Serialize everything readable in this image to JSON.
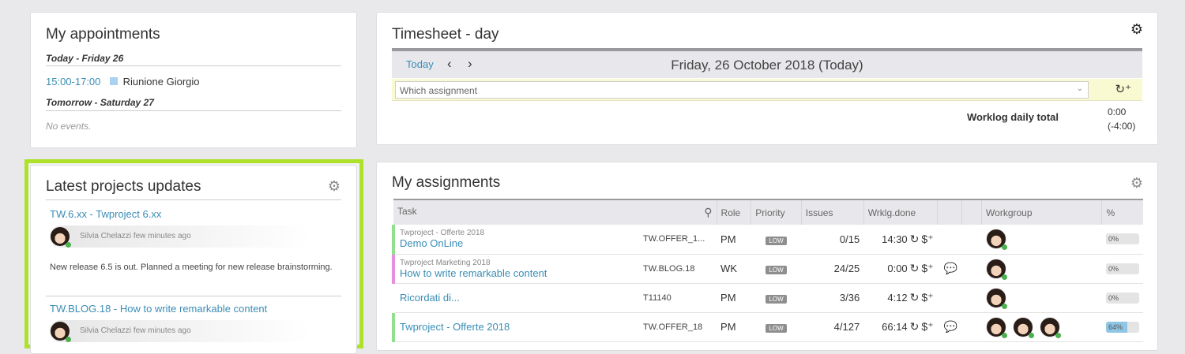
{
  "appointments": {
    "title": "My appointments",
    "today_label": "Today - Friday 26",
    "events": [
      {
        "time": "15:00-17:00",
        "title": "Riunione Giorgio",
        "color": "#a9d1f0"
      }
    ],
    "tomorrow_label": "Tomorrow - Saturday 27",
    "no_events": "No events."
  },
  "latest": {
    "title": "Latest projects updates",
    "items": [
      {
        "title": "TW.6.xx - Twproject 6.xx",
        "author": "Silvia Chelazzi",
        "when": "few minutes ago",
        "body": "New release 6.5 is out. Planned a meeting for new release brainstorming."
      },
      {
        "title": "TW.BLOG.18 - How to write remarkable content",
        "author": "Silvia Chelazzi",
        "when": "few minutes ago"
      }
    ]
  },
  "timesheet": {
    "title": "Timesheet - day",
    "today_btn": "Today",
    "prev": "‹",
    "next": "›",
    "date": "Friday, 26 October 2018 (Today)",
    "assignment_placeholder": "Which assignment",
    "total_label": "Worklog daily total",
    "total": "0:00",
    "delta": "(-4:00)"
  },
  "assignments": {
    "title": "My assignments",
    "columns": [
      "Task",
      "Role",
      "Priority",
      "Issues",
      "Wrklg.done",
      "",
      "",
      "Workgroup",
      "%"
    ],
    "rows": [
      {
        "parent": "Twproject - Offerte 2018",
        "task": "Demo OnLine",
        "code": "TW.OFFER_1...",
        "role": "PM",
        "priority": "LOW",
        "issues": "0/15",
        "worklog": "14:30",
        "comment": false,
        "members": 1,
        "pct": 0,
        "pct_label": "0%",
        "color": "#90e090"
      },
      {
        "parent": "Twproject Marketing 2018",
        "task": "How to write remarkable content",
        "code": "TW.BLOG.18",
        "role": "WK",
        "priority": "LOW",
        "issues": "24/25",
        "worklog": "0:00",
        "comment": true,
        "members": 1,
        "pct": 0,
        "pct_label": "0%",
        "color": "#e88ee0"
      },
      {
        "parent": "",
        "task": "Ricordati di...",
        "code": "T11140",
        "role": "PM",
        "priority": "LOW",
        "issues": "3/36",
        "worklog": "4:12",
        "comment": false,
        "members": 1,
        "pct": 0,
        "pct_label": "0%",
        "color": "transparent"
      },
      {
        "parent": "",
        "task": "Twproject - Offerte 2018",
        "code": "TW.OFFER_18",
        "role": "PM",
        "priority": "LOW",
        "issues": "4/127",
        "worklog": "66:14",
        "comment": true,
        "members": 3,
        "pct": 64,
        "pct_label": "64%",
        "color": "#90e090"
      }
    ]
  },
  "accent": "#3a8db5",
  "highlight": "#aee22a"
}
